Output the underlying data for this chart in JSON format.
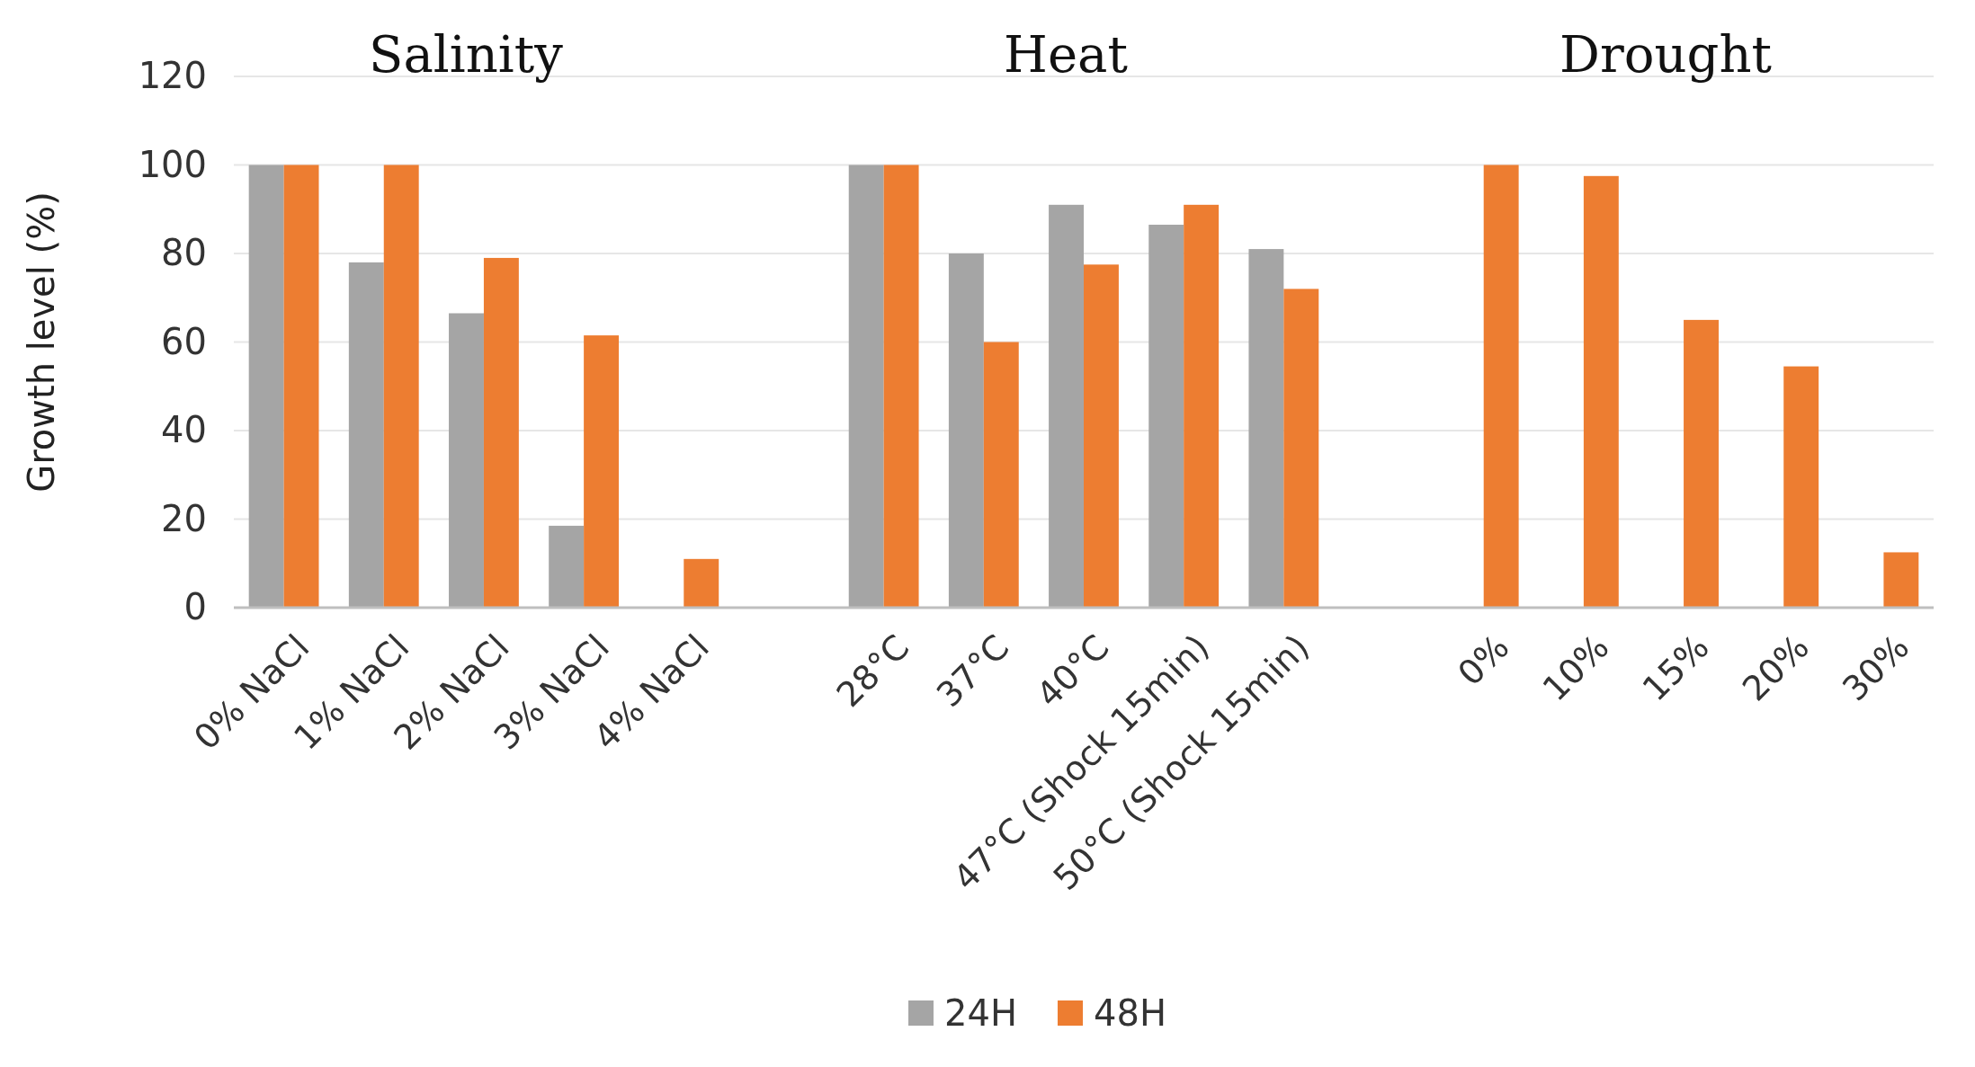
{
  "chart_data": {
    "type": "bar",
    "ylabel": "Growth level (%)",
    "categories": [
      "0% NaCl",
      "1% NaCl",
      "2% NaCl",
      "3% NaCl",
      "4% NaCl",
      null,
      "28°C",
      "37°C",
      "40°C",
      "47°C (Shock 15min)",
      "50°C  (Shock 15min)",
      null,
      "0%",
      "10%",
      "15%",
      "20%",
      "30%"
    ],
    "series": [
      {
        "name": "24H",
        "color": "#a5a5a5",
        "values": [
          100,
          78,
          66.5,
          18.5,
          null,
          null,
          100,
          80,
          91,
          86.5,
          81,
          null,
          null,
          null,
          null,
          null,
          null
        ]
      },
      {
        "name": "48H",
        "color": "#ed7d31",
        "values": [
          100,
          100,
          79,
          61.5,
          11,
          null,
          100,
          60,
          77.5,
          91,
          72,
          null,
          100,
          97.5,
          65,
          54.5,
          12.5
        ]
      }
    ],
    "ylim": [
      0,
      120
    ],
    "yticks": [
      0,
      20,
      40,
      60,
      80,
      100,
      120
    ],
    "grid": "y",
    "legend": "bottom",
    "annotations": [
      "Salinity",
      "Heat",
      "Drought"
    ]
  }
}
